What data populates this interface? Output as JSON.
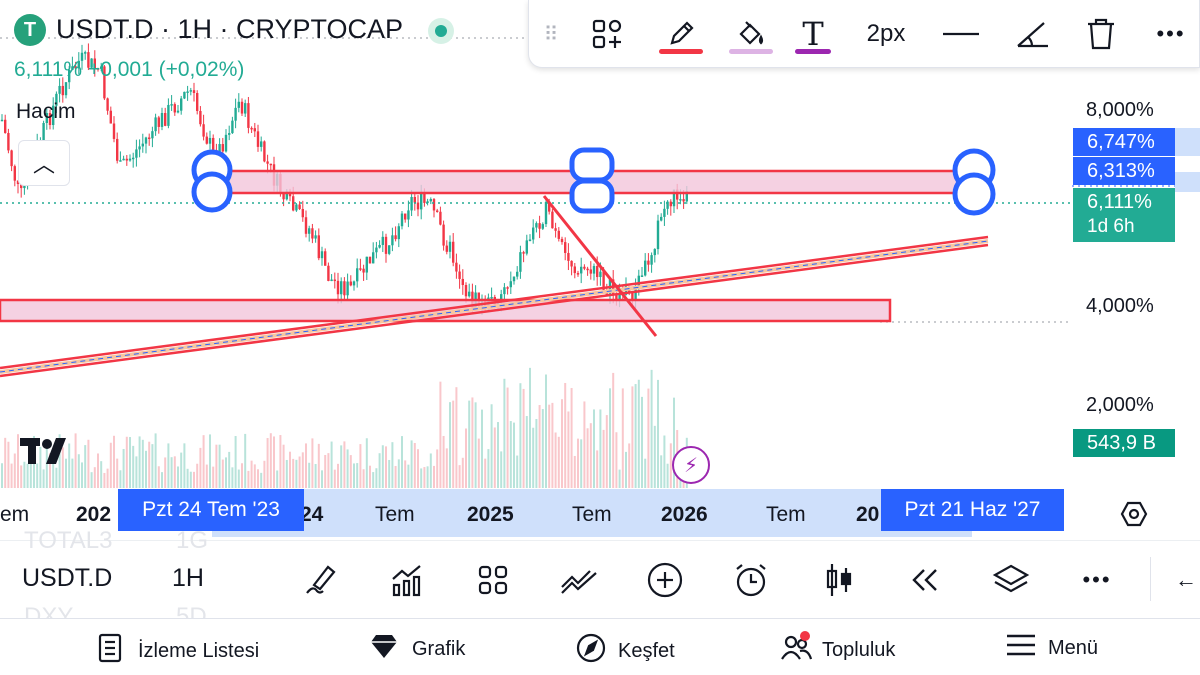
{
  "header": {
    "title": "USDT.D · 1H · CRYPTOCAP",
    "price_line": "6,111% +0,001 (+0,02%)",
    "volume_label": "Hacim",
    "logo_glyph": "T"
  },
  "drawing_toolbar": {
    "stroke_width": "2px",
    "pen_color": "#f23645",
    "fill_color": "#ce93d8",
    "text_color": "#9c27b0",
    "icons": [
      "drag-handle-icon",
      "add-objects-icon",
      "pencil-icon",
      "fill-bucket-icon",
      "text-icon",
      "line-style-icon",
      "angle-icon",
      "trash-icon",
      "more-icon"
    ]
  },
  "price_axis": {
    "labels": [
      {
        "text": "8,000%",
        "value": 8
      },
      {
        "text": "4,000%",
        "value": 4
      },
      {
        "text": "2,000%",
        "value": 2
      }
    ],
    "tags": [
      {
        "text": "6,747%",
        "color": "#2962ff"
      },
      {
        "text": "6,313%",
        "color": "#2962ff"
      },
      {
        "text": "6,111%",
        "subtext": "1d 6h",
        "color": "#22ab94"
      },
      {
        "text": "543,9 B",
        "color": "#089981"
      }
    ]
  },
  "time_axis": {
    "labels": [
      "em",
      "202",
      "24",
      "Tem",
      "2025",
      "Tem",
      "2026",
      "Tem",
      "20"
    ],
    "range_start": "Pzt 24 Tem '23",
    "range_end": "Pzt 21 Haz '27"
  },
  "bottom_toolbar": {
    "symbol": "USDT.D",
    "interval": "1H",
    "ghost_symbols": [
      "TOTAL3",
      "1G",
      "DXY",
      "5D"
    ]
  },
  "bottom_nav": {
    "items": [
      {
        "label": "İzleme Listesi",
        "icon": "watchlist-icon"
      },
      {
        "label": "Grafik",
        "icon": "chart-gem-icon"
      },
      {
        "label": "Keşfet",
        "icon": "compass-icon"
      },
      {
        "label": "Topluluk",
        "icon": "community-icon"
      },
      {
        "label": "Menü",
        "icon": "hamburger-icon"
      }
    ]
  },
  "colors": {
    "up": "#22ab94",
    "down": "#f23645",
    "zone_fill": "#f3c6db",
    "handle": "#2962ff"
  },
  "chart_data": {
    "type": "candlestick",
    "symbol": "USDT.D",
    "unit": "%",
    "last_value": 6.111,
    "zones": [
      {
        "low": 6.313,
        "high": 6.747
      },
      {
        "low": 3.8,
        "high": 4.15
      }
    ]
  }
}
